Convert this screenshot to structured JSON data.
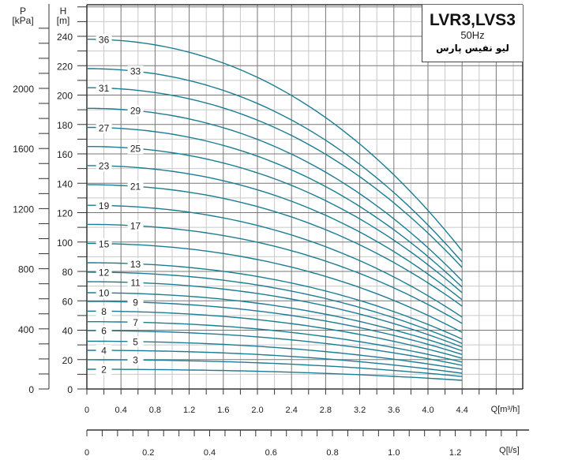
{
  "chart_data": {
    "type": "line",
    "title": "LVR3,LVS3",
    "subtitle": "50Hz",
    "brand_text": "لیو نفیس پارس",
    "xlabel": "Q[m³/h]",
    "x2label": "Q[l/s]",
    "ylabel": "H\n[m]",
    "ylabel_h_line1": "H",
    "ylabel_h_line2": "[m]",
    "ylabel_p_line1": "P",
    "ylabel_p_line2": "[kPa]",
    "xlim": [
      0,
      5.1
    ],
    "ylim": [
      0,
      262
    ],
    "x_ticks": [
      "0",
      "0.4",
      "0.8",
      "1.2",
      "1.6",
      "2.0",
      "2.4",
      "2.8",
      "3.2",
      "3.6",
      "4.0",
      "4.4"
    ],
    "x2_ticks": [
      "0",
      "0.2",
      "0.4",
      "0.6",
      "0.8",
      "1.0",
      "1.2"
    ],
    "y_ticks": [
      "0",
      "20",
      "40",
      "60",
      "80",
      "100",
      "120",
      "140",
      "160",
      "180",
      "200",
      "220",
      "240"
    ],
    "p_ticks": [
      "0",
      "400",
      "800",
      "1200",
      "1600",
      "2000"
    ],
    "grid": true,
    "line_color": "#1b7d93",
    "q_range": [
      0,
      4.4
    ],
    "series": [
      {
        "name": "2",
        "h0": 13.4,
        "h_end": 5.9
      },
      {
        "name": "3",
        "h0": 19.9,
        "h_end": 8.5
      },
      {
        "name": "4",
        "h0": 26.3,
        "h_end": 10.7
      },
      {
        "name": "5",
        "h0": 32.5,
        "h_end": 13.4
      },
      {
        "name": "6",
        "h0": 39.7,
        "h_end": 16.1
      },
      {
        "name": "7",
        "h0": 45.8,
        "h_end": 18.3
      },
      {
        "name": "8",
        "h0": 53.0,
        "h_end": 20.9
      },
      {
        "name": "9",
        "h0": 59.6,
        "h_end": 23.5
      },
      {
        "name": "10",
        "h0": 65.5,
        "h_end": 26.0
      },
      {
        "name": "11",
        "h0": 73.0,
        "h_end": 28.5
      },
      {
        "name": "12",
        "h0": 79.5,
        "h_end": 31.0
      },
      {
        "name": "13",
        "h0": 85.9,
        "h_end": 34.0
      },
      {
        "name": "15",
        "h0": 99,
        "h_end": 38.5
      },
      {
        "name": "17",
        "h0": 112,
        "h_end": 44.6
      },
      {
        "name": "19",
        "h0": 125,
        "h_end": 48.9
      },
      {
        "name": "21",
        "h0": 139,
        "h_end": 56.4
      },
      {
        "name": "23",
        "h0": 152,
        "h_end": 60.7
      },
      {
        "name": "25",
        "h0": 165,
        "h_end": 65.5
      },
      {
        "name": "27",
        "h0": 178,
        "h_end": 69.3
      },
      {
        "name": "29",
        "h0": 191,
        "h_end": 73.6
      },
      {
        "name": "31",
        "h0": 205,
        "h_end": 82.7
      },
      {
        "name": "33",
        "h0": 218,
        "h_end": 86.4
      },
      {
        "name": "36",
        "h0": 238,
        "h_end": 94
      }
    ]
  }
}
